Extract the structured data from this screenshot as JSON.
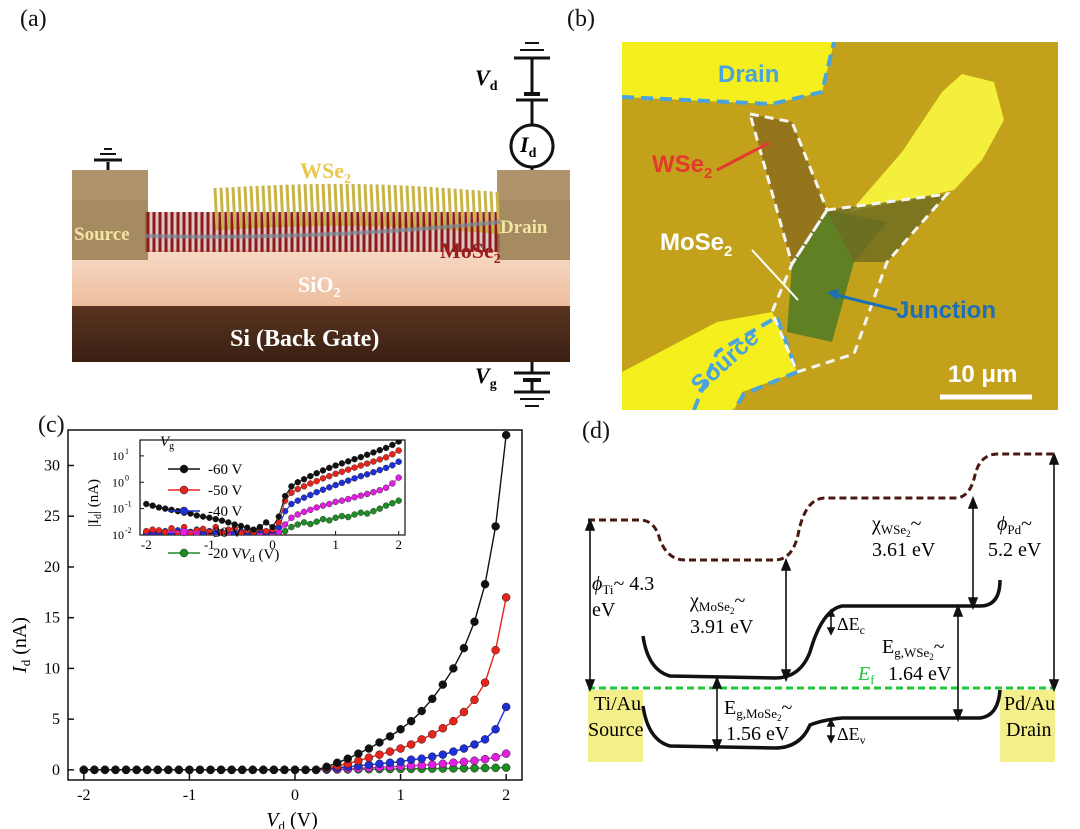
{
  "panel_labels": {
    "a": "(a)",
    "b": "(b)",
    "c": "(c)",
    "d": "(d)"
  },
  "panel_a": {
    "wse2": "WSe",
    "wse2_sub": "2",
    "mose2": "MoSe",
    "mose2_sub": "2",
    "sio2": "SiO",
    "sio2_sub": "2",
    "si": "Si (Back Gate)",
    "source": "Source",
    "drain": "Drain",
    "vd": "V",
    "vd_sub": "d",
    "id": "I",
    "id_sub": "d",
    "vg": "V",
    "vg_sub": "g",
    "colors": {
      "wse2": "#e8c84a",
      "mose2": "#9b1e1e",
      "sio2": "#f3cdb3",
      "si": "#4a2a1a",
      "contact": "#a58a62"
    }
  },
  "panel_b": {
    "drain": "Drain",
    "source": "Source",
    "wse2": "WSe",
    "wse2_sub": "2",
    "mose2": "MoSe",
    "mose2_sub": "2",
    "junction": "Junction",
    "scale": "10 μm",
    "colors": {
      "background": "#c7a61a",
      "contact": "#f5ef1e",
      "outline": "#4aa3dd",
      "wse2_label": "#e23b2e",
      "junction_label": "#1c6fb8"
    }
  },
  "panel_c": {
    "xlabel": "V",
    "xlabel_sub": "d",
    "xlabel_unit": " (V)",
    "ylabel": "I",
    "ylabel_sub": "d",
    "ylabel_unit": " (nA)",
    "inset_xlabel": "V",
    "inset_xlabel_sub": "d",
    "inset_xlabel_unit": " (V)",
    "inset_ylabel": "|I",
    "inset_ylabel_sub": "d",
    "inset_ylabel_unit": "| (nA)",
    "legend_title": "V",
    "legend_title_sub": "g",
    "xticks": [
      "-2",
      "-1",
      "0",
      "1",
      "2"
    ],
    "yticks": [
      "0",
      "5",
      "10",
      "15",
      "20",
      "25",
      "30"
    ],
    "inset_xticks": [
      "-2",
      "-1",
      "0",
      "1",
      "2"
    ]
  },
  "chart_data": {
    "type": "line",
    "xlabel": "Vd (V)",
    "ylabel": "Id (nA)",
    "xlim": [
      -2.15,
      2.15
    ],
    "ylim": [
      -1,
      33.5
    ],
    "x": [
      -2.0,
      -1.9,
      -1.8,
      -1.7,
      -1.6,
      -1.5,
      -1.4,
      -1.3,
      -1.2,
      -1.1,
      -1.0,
      -0.9,
      -0.8,
      -0.7,
      -0.6,
      -0.5,
      -0.4,
      -0.3,
      -0.2,
      -0.1,
      0.0,
      0.1,
      0.2,
      0.3,
      0.4,
      0.5,
      0.6,
      0.7,
      0.8,
      0.9,
      1.0,
      1.1,
      1.2,
      1.3,
      1.4,
      1.5,
      1.6,
      1.7,
      1.8,
      1.9,
      2.0
    ],
    "series": [
      {
        "name": "-60 V",
        "color": "#111111",
        "values": [
          0,
          0,
          0,
          0,
          0,
          0,
          0,
          0,
          0,
          0,
          0,
          0,
          0,
          0,
          0,
          0,
          0,
          0,
          0,
          0,
          0,
          0,
          0,
          0.3,
          0.7,
          1.1,
          1.6,
          2.1,
          2.7,
          3.3,
          4.0,
          4.8,
          5.8,
          7.0,
          8.4,
          10.0,
          12.0,
          14.6,
          18.3,
          24.0,
          33.0
        ]
      },
      {
        "name": "-50 V",
        "color": "#e8231c",
        "values": [
          0,
          0,
          0,
          0,
          0,
          0,
          0,
          0,
          0,
          0,
          0,
          0,
          0,
          0,
          0,
          0,
          0,
          0,
          0,
          0,
          0,
          0,
          0,
          0.2,
          0.4,
          0.6,
          0.9,
          1.2,
          1.5,
          1.8,
          2.1,
          2.5,
          3.0,
          3.5,
          4.1,
          4.8,
          5.7,
          6.9,
          8.6,
          11.8,
          17.0
        ]
      },
      {
        "name": "-40 V",
        "color": "#1d2fd9",
        "values": [
          0,
          0,
          0,
          0,
          0,
          0,
          0,
          0,
          0,
          0,
          0,
          0,
          0,
          0,
          0,
          0,
          0,
          0,
          0,
          0,
          0,
          0,
          0,
          0.1,
          0.2,
          0.3,
          0.4,
          0.5,
          0.6,
          0.7,
          0.8,
          1.0,
          1.1,
          1.3,
          1.5,
          1.8,
          2.1,
          2.5,
          3.0,
          4.0,
          6.2
        ]
      },
      {
        "name": "-30 V",
        "color": "#e21fe0",
        "values": [
          0,
          0,
          0,
          0,
          0,
          0,
          0,
          0,
          0,
          0,
          0,
          0,
          0,
          0,
          0,
          0,
          0,
          0,
          0,
          0,
          0,
          0,
          0,
          0.05,
          0.08,
          0.12,
          0.16,
          0.2,
          0.25,
          0.3,
          0.35,
          0.4,
          0.45,
          0.52,
          0.6,
          0.7,
          0.8,
          0.9,
          1.05,
          1.25,
          1.6
        ]
      },
      {
        "name": "-20 V",
        "color": "#1e8c24",
        "values": [
          0,
          0,
          0,
          0,
          0,
          0,
          0,
          0,
          0,
          0,
          0,
          0,
          0,
          0,
          0,
          0,
          0,
          0,
          0,
          0,
          0,
          0,
          0,
          0.02,
          0.03,
          0.04,
          0.05,
          0.06,
          0.07,
          0.08,
          0.09,
          0.1,
          0.11,
          0.12,
          0.13,
          0.14,
          0.15,
          0.16,
          0.18,
          0.2,
          0.22
        ]
      }
    ],
    "inset": {
      "type": "scatter-log",
      "yscale": "log",
      "xlim": [
        -2.1,
        2.1
      ],
      "ylim": [
        0.01,
        40
      ],
      "yticks": [
        0.01,
        0.1,
        1,
        10
      ],
      "ytick_labels": [
        "10",
        "10",
        "10",
        "10"
      ],
      "ytick_exponents": [
        "-2",
        "-1",
        "0",
        "1"
      ],
      "x": [
        -2.0,
        -1.9,
        -1.8,
        -1.7,
        -1.6,
        -1.5,
        -1.4,
        -1.3,
        -1.2,
        -1.1,
        -1.0,
        -0.9,
        -0.8,
        -0.7,
        -0.6,
        -0.5,
        -0.4,
        -0.3,
        -0.2,
        -0.1,
        0.0,
        0.1,
        0.2,
        0.3,
        0.4,
        0.5,
        0.6,
        0.7,
        0.8,
        0.9,
        1.0,
        1.1,
        1.2,
        1.3,
        1.4,
        1.5,
        1.6,
        1.7,
        1.8,
        1.9,
        2.0
      ],
      "series": [
        {
          "name": "-60 V",
          "values": [
            0.15,
            0.13,
            0.11,
            0.1,
            0.09,
            0.08,
            0.07,
            0.065,
            0.055,
            0.05,
            0.045,
            0.04,
            0.035,
            0.03,
            0.025,
            0.022,
            0.019,
            0.016,
            0.02,
            0.03,
            0.02,
            0.05,
            0.3,
            0.7,
            1.0,
            1.3,
            1.7,
            2.2,
            2.8,
            3.5,
            4.3,
            5.2,
            6.2,
            7.5,
            9.0,
            11.0,
            13.5,
            16.5,
            20.0,
            26.0,
            35.0
          ]
        },
        {
          "name": "-50 V",
          "values": [
            0.014,
            0.016,
            0.015,
            0.013,
            0.018,
            0.012,
            0.02,
            0.012,
            0.015,
            0.017,
            0.013,
            0.02,
            0.012,
            0.016,
            0.018,
            0.012,
            0.015,
            0.013,
            0.018,
            0.014,
            0.016,
            0.03,
            0.2,
            0.4,
            0.55,
            0.7,
            0.9,
            1.1,
            1.4,
            1.7,
            2.1,
            2.5,
            3.0,
            3.6,
            4.3,
            5.1,
            6.1,
            7.3,
            8.8,
            11.5,
            16.0
          ]
        },
        {
          "name": "-40 V",
          "values": [
            0.012,
            0.013,
            0.012,
            0.014,
            0.012,
            0.015,
            0.012,
            0.013,
            0.016,
            0.012,
            0.014,
            0.012,
            0.013,
            0.015,
            0.012,
            0.014,
            0.012,
            0.013,
            0.015,
            0.012,
            0.014,
            0.02,
            0.08,
            0.15,
            0.2,
            0.26,
            0.33,
            0.42,
            0.52,
            0.64,
            0.78,
            0.95,
            1.15,
            1.4,
            1.7,
            2.0,
            2.4,
            2.9,
            3.5,
            4.4,
            6.0
          ]
        },
        {
          "name": "-30 V",
          "values": [
            0.011,
            0.012,
            0.011,
            0.013,
            0.011,
            0.012,
            0.011,
            0.013,
            0.011,
            0.012,
            0.011,
            0.013,
            0.011,
            0.012,
            0.011,
            0.013,
            0.011,
            0.012,
            0.011,
            0.013,
            0.011,
            0.013,
            0.025,
            0.045,
            0.06,
            0.075,
            0.09,
            0.11,
            0.13,
            0.15,
            0.18,
            0.2,
            0.23,
            0.27,
            0.31,
            0.36,
            0.42,
            0.5,
            0.62,
            0.9,
            1.5
          ]
        },
        {
          "name": "-20 V",
          "values": [
            0.011,
            0.011,
            0.012,
            0.011,
            0.011,
            0.012,
            0.011,
            0.011,
            0.012,
            0.011,
            0.011,
            0.012,
            0.011,
            0.011,
            0.012,
            0.011,
            0.011,
            0.012,
            0.011,
            0.011,
            0.012,
            0.012,
            0.014,
            0.02,
            0.025,
            0.03,
            0.026,
            0.032,
            0.04,
            0.036,
            0.045,
            0.052,
            0.048,
            0.06,
            0.07,
            0.065,
            0.08,
            0.1,
            0.13,
            0.16,
            0.2
          ]
        }
      ]
    }
  },
  "panel_d": {
    "phi_ti": "ϕ",
    "phi_ti_sub": "Ti",
    "phi_ti_val": "~ 4.3",
    "phi_ti_val2": "eV",
    "chi_mose2": "χ",
    "chi_mose2_sub": "MoSe",
    "chi_mose2_sub2": "2",
    "chi_mose2_val": "3.91 eV",
    "chi_wse2": "χ",
    "chi_wse2_sub": "WSe",
    "chi_wse2_sub2": "2",
    "chi_wse2_val": "3.61 eV",
    "phi_pd": "ϕ",
    "phi_pd_sub": "Pd",
    "phi_pd_val": "5.2 eV",
    "tilde": "~",
    "dec": "ΔE",
    "dec_sub": "c",
    "dev": "ΔE",
    "dev_sub": "v",
    "ef": "E",
    "ef_sub": "f",
    "eg_wse2": "E",
    "eg_wse2_sub": "g,WSe",
    "eg_wse2_sub2": "2",
    "eg_wse2_val": "1.64 eV",
    "eg_mose2": "E",
    "eg_mose2_sub": "g,MoSe",
    "eg_mose2_sub2": "2",
    "eg_mose2_val": "1.56 eV",
    "left_contact1": "Ti/Au",
    "left_contact2": "Source",
    "right_contact1": "Pd/Au",
    "right_contact2": "Drain",
    "colors": {
      "vacuum": "#4a1a12",
      "ef": "#22c43a",
      "contact": "#f4ef8a"
    }
  }
}
